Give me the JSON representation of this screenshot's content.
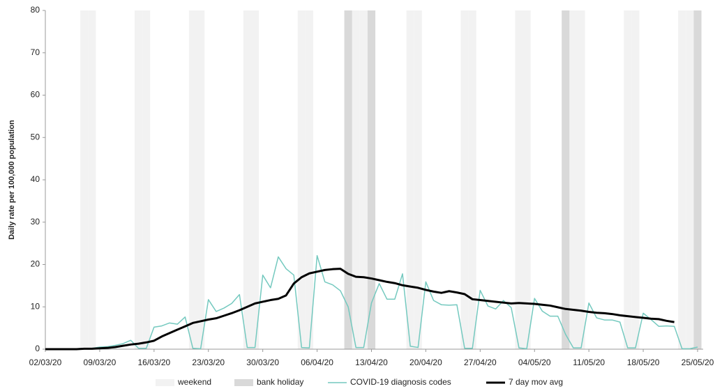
{
  "chart_data": {
    "type": "line",
    "y_label": "Daily rate per 100,000 population",
    "categories": [
      "02/03/20",
      null,
      null,
      null,
      null,
      null,
      null,
      "09/03/20",
      null,
      null,
      null,
      null,
      null,
      null,
      "16/03/20",
      null,
      null,
      null,
      null,
      null,
      null,
      "23/03/20",
      null,
      null,
      null,
      null,
      null,
      null,
      "30/03/20",
      null,
      null,
      null,
      null,
      null,
      null,
      "06/04/20",
      null,
      null,
      null,
      null,
      null,
      null,
      "13/04/20",
      null,
      null,
      null,
      null,
      null,
      null,
      "20/04/20",
      null,
      null,
      null,
      null,
      null,
      null,
      "27/04/20",
      null,
      null,
      null,
      null,
      null,
      null,
      "04/05/20",
      null,
      null,
      null,
      null,
      null,
      null,
      "11/05/20",
      null,
      null,
      null,
      null,
      null,
      null,
      "18/05/20",
      null,
      null,
      null,
      null,
      null,
      null,
      "25/05/20"
    ],
    "ylim": [
      0,
      80
    ],
    "yticks": [
      0,
      10,
      20,
      30,
      40,
      50,
      60,
      70,
      80
    ],
    "grid": false,
    "legend": "bottom",
    "series": [
      {
        "name": "weekend",
        "type": "bar",
        "color": "#f2f2f2",
        "values": [
          null,
          null,
          null,
          null,
          null,
          80,
          80,
          null,
          null,
          null,
          null,
          null,
          80,
          80,
          null,
          null,
          null,
          null,
          null,
          80,
          80,
          null,
          null,
          null,
          null,
          null,
          80,
          80,
          null,
          null,
          null,
          null,
          null,
          80,
          80,
          null,
          null,
          null,
          null,
          null,
          80,
          80,
          null,
          null,
          null,
          null,
          null,
          80,
          80,
          null,
          null,
          null,
          null,
          null,
          80,
          80,
          null,
          null,
          null,
          null,
          null,
          80,
          80,
          null,
          null,
          null,
          null,
          null,
          80,
          80,
          null,
          null,
          null,
          null,
          null,
          80,
          80,
          null,
          null,
          null,
          null,
          null,
          80,
          80,
          null
        ]
      },
      {
        "name": "bank holiday",
        "type": "bar",
        "color": "#d9d9d9",
        "values": [
          null,
          null,
          null,
          null,
          null,
          null,
          null,
          null,
          null,
          null,
          null,
          null,
          null,
          null,
          null,
          null,
          null,
          null,
          null,
          null,
          null,
          null,
          null,
          null,
          null,
          null,
          null,
          null,
          null,
          null,
          null,
          null,
          null,
          null,
          null,
          null,
          null,
          null,
          null,
          80,
          null,
          null,
          80,
          null,
          null,
          null,
          null,
          null,
          null,
          null,
          null,
          null,
          null,
          null,
          null,
          null,
          null,
          null,
          null,
          null,
          null,
          null,
          null,
          null,
          null,
          null,
          null,
          80,
          null,
          null,
          null,
          null,
          null,
          null,
          null,
          null,
          null,
          null,
          null,
          null,
          null,
          null,
          null,
          null,
          80
        ]
      },
      {
        "name": "COVID-19 diagnosis codes",
        "type": "line",
        "color": "#74c9bf",
        "width": 1.5,
        "values": [
          0,
          0,
          0,
          0,
          0.1,
          0.2,
          0.2,
          0.5,
          0.6,
          0.9,
          1.3,
          2.1,
          0.2,
          0.2,
          5.2,
          5.5,
          6.2,
          5.9,
          7.6,
          0.2,
          0.1,
          11.7,
          8.9,
          9.7,
          10.8,
          12.9,
          0.4,
          0.4,
          17.5,
          14.5,
          21.8,
          19,
          17.5,
          0.4,
          0.3,
          22.1,
          15.9,
          15.2,
          13.8,
          10,
          0.4,
          0.4,
          10.9,
          15.5,
          11.8,
          11.8,
          17.8,
          0.7,
          0.4,
          15.9,
          11.5,
          10.5,
          10.4,
          10.5,
          0.2,
          0.2,
          13.9,
          10.2,
          9.5,
          11.5,
          9.8,
          0.3,
          0.1,
          12,
          9,
          7.8,
          7.8,
          3.5,
          0.3,
          0.3,
          10.9,
          7.4,
          6.9,
          6.9,
          6.4,
          0.3,
          0.3,
          8.5,
          7,
          5.4,
          5.5,
          5.4,
          0.1,
          0.1,
          0.5
        ]
      },
      {
        "name": "7 day mov avg",
        "type": "line",
        "color": "#000000",
        "width": 3,
        "values": [
          0,
          0,
          0,
          0,
          0,
          0.1,
          0.1,
          0.2,
          0.3,
          0.5,
          0.8,
          1.1,
          1.3,
          1.6,
          2.0,
          3.0,
          3.8,
          4.6,
          5.4,
          6.2,
          6.6,
          7.0,
          7.3,
          7.9,
          8.5,
          9.2,
          10.0,
          10.8,
          11.2,
          11.6,
          11.9,
          12.7,
          15.5,
          17.0,
          17.9,
          18.3,
          18.7,
          18.9,
          19.0,
          17.8,
          17.1,
          17.0,
          16.7,
          16.3,
          15.9,
          15.6,
          15.1,
          14.8,
          14.5,
          14.0,
          13.6,
          13.3,
          13.7,
          13.4,
          13.0,
          11.8,
          11.6,
          11.4,
          11.2,
          11.0,
          10.8,
          10.9,
          10.8,
          10.7,
          10.5,
          10.3,
          9.9,
          9.5,
          9.3,
          9.1,
          8.8,
          8.6,
          8.5,
          8.3,
          8.0,
          7.8,
          7.6,
          7.4,
          7.2,
          7.1,
          6.7,
          6.4,
          null,
          null,
          null
        ]
      }
    ]
  }
}
